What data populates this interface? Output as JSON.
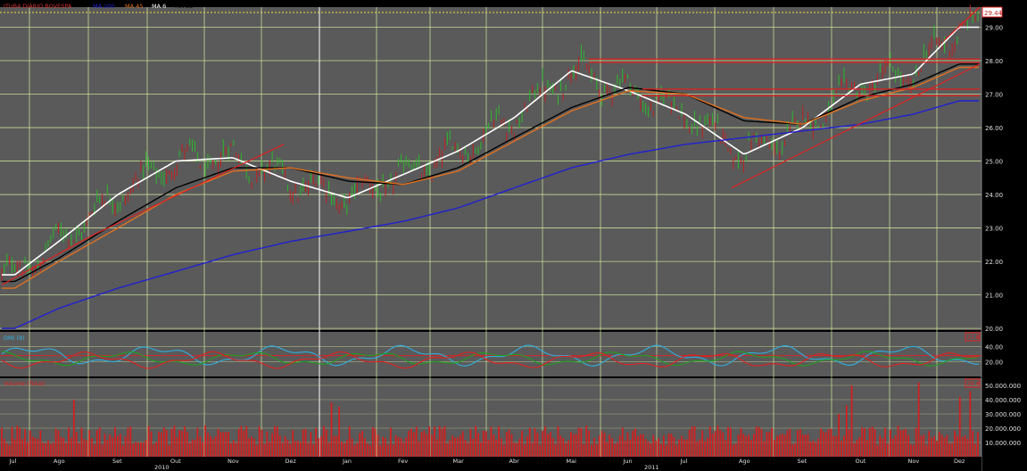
{
  "legend": {
    "symbol": "ITUB4 DIÁRIO BOVESPA",
    "ma200": "MA 200",
    "ma45": "MA 45",
    "ma6": "MA 6",
    "ma35": "MA 35"
  },
  "price_axis": {
    "ticks": [
      "29.00",
      "28.00",
      "27.00",
      "26.00",
      "25.00",
      "24.00",
      "23.00",
      "22.00",
      "21.00",
      "20.00"
    ],
    "last_price": "29.44"
  },
  "dmi_panel": {
    "label": "DMI (8)",
    "ticks": [
      "40.00",
      "20.00"
    ],
    "badge": "27.8"
  },
  "volume_panel": {
    "label": "Volume (Total)",
    "ticks": [
      "50.000.000",
      "40.000.000",
      "30.000.000",
      "20.000.000",
      "10.000.000"
    ],
    "badge": "39.4"
  },
  "time_axis": {
    "months": [
      "Jul",
      "Ago",
      "Set",
      "Out",
      "Nov",
      "Dez",
      "Jan",
      "Fev",
      "Mar",
      "Abr",
      "Mai",
      "Jun",
      "Jul",
      "Ago",
      "Set",
      "Out",
      "Nov",
      "Dez"
    ],
    "years": [
      "2010",
      "2011"
    ]
  },
  "colors": {
    "background": "#5a5a5a",
    "grid": "#d8f0a0",
    "candle_up": "#2db82d",
    "candle_down": "#c02020",
    "ma6": "#ffffff",
    "ma35": "#000000",
    "ma45": "#e07020",
    "ma200": "#2020d0",
    "trendline": "#e02020",
    "dmi_adx": "#30b0e0",
    "dmi_plus": "#20a020",
    "dmi_minus": "#e02020",
    "volume": "#d02020"
  },
  "chart_data": {
    "type": "line",
    "title": "ITUB4 DIÁRIO BOVESPA",
    "xlabel": "",
    "ylabel": "",
    "ylim": [
      19.95,
      29.6
    ],
    "x": [
      "2010-07",
      "2010-08",
      "2010-09",
      "2010-10",
      "2010-11",
      "2010-12",
      "2011-01",
      "2011-02",
      "2011-03",
      "2011-04",
      "2011-05",
      "2011-06",
      "2011-07",
      "2011-08",
      "2011-09",
      "2011-10",
      "2011-11",
      "2011-12"
    ],
    "series": [
      {
        "name": "MA 6",
        "values": [
          21.6,
          22.6,
          24.0,
          25.0,
          25.1,
          24.4,
          23.9,
          24.6,
          25.3,
          26.3,
          27.7,
          27.1,
          26.4,
          25.2,
          26.0,
          27.3,
          27.6,
          29.0
        ]
      },
      {
        "name": "MA 35",
        "values": [
          21.4,
          22.1,
          23.2,
          24.2,
          24.8,
          24.8,
          24.4,
          24.3,
          24.8,
          25.7,
          26.6,
          27.2,
          27.0,
          26.2,
          26.1,
          26.9,
          27.3,
          27.9
        ]
      },
      {
        "name": "MA 45",
        "values": [
          21.2,
          22.0,
          23.0,
          24.0,
          24.7,
          24.8,
          24.5,
          24.3,
          24.7,
          25.6,
          26.5,
          27.1,
          27.0,
          26.3,
          26.1,
          26.8,
          27.2,
          27.8
        ]
      },
      {
        "name": "MA 200",
        "values": [
          20.0,
          20.6,
          21.2,
          21.7,
          22.2,
          22.6,
          22.9,
          23.2,
          23.6,
          24.2,
          24.8,
          25.2,
          25.5,
          25.7,
          25.9,
          26.1,
          26.4,
          26.8
        ]
      }
    ],
    "annotations": [
      "29.44"
    ]
  }
}
